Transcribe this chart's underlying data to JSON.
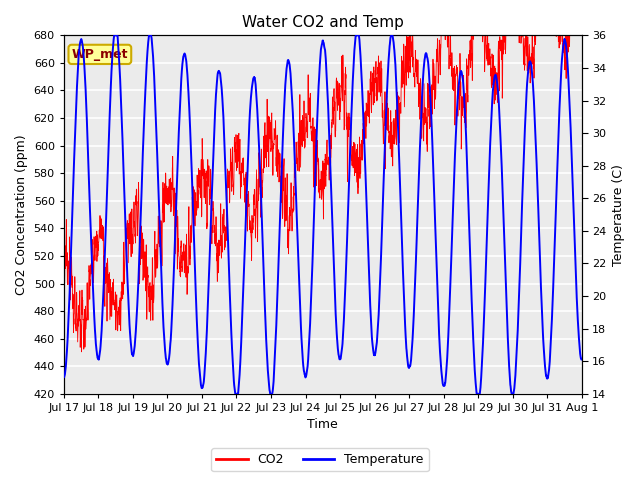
{
  "title": "Water CO2 and Temp",
  "xlabel": "Time",
  "ylabel_left": "CO2 Concentration (ppm)",
  "ylabel_right": "Temperature (C)",
  "co2_ylim": [
    420,
    680
  ],
  "temp_ylim": [
    14,
    36
  ],
  "annotation_text": "WP_met",
  "annotation_bg": "#FFFF99",
  "annotation_border": "#CCAA00",
  "co2_color": "red",
  "temp_color": "blue",
  "plot_bg": "#EBEBEB",
  "grid_color": "white",
  "n_points": 2880,
  "seed": 7
}
